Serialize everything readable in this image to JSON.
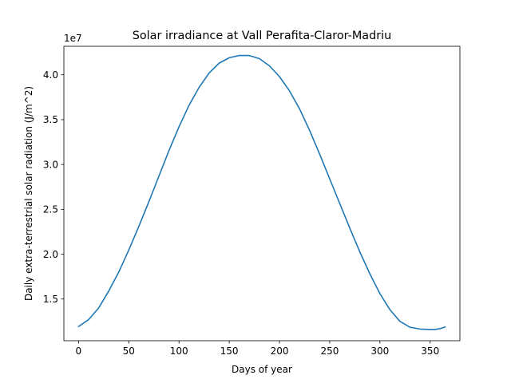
{
  "chart_data": {
    "type": "line",
    "title": "Solar irradiance at Vall Perafita-Claror-Madriu",
    "xlabel": "Days of year",
    "ylabel": "Daily extra-terrestrial solar radiation (J/m^2)",
    "y_offset_label": "1e7",
    "y_scale": 10000000,
    "xlim": [
      -14.6,
      379.6
    ],
    "ylim": [
      10350000,
      43180000
    ],
    "xticks": [
      0,
      50,
      100,
      150,
      200,
      250,
      300,
      350
    ],
    "xtick_labels": [
      "0",
      "50",
      "100",
      "150",
      "200",
      "250",
      "300",
      "350"
    ],
    "yticks": [
      15000000,
      20000000,
      25000000,
      30000000,
      35000000,
      40000000
    ],
    "ytick_labels": [
      "1.5",
      "2.0",
      "2.5",
      "3.0",
      "3.5",
      "4.0"
    ],
    "grid": false,
    "series": [
      {
        "name": "Solar irradiance",
        "color": "#1f77b4",
        "x": [
          0,
          10,
          20,
          30,
          40,
          50,
          60,
          70,
          80,
          90,
          100,
          110,
          120,
          130,
          140,
          150,
          160,
          170,
          180,
          190,
          200,
          210,
          220,
          230,
          240,
          250,
          260,
          270,
          280,
          290,
          300,
          310,
          320,
          330,
          340,
          350,
          355,
          360,
          365
        ],
        "y": [
          11930000,
          12700000,
          14000000,
          15880000,
          18000000,
          20450000,
          23100000,
          25850000,
          28700000,
          31550000,
          34200000,
          36600000,
          38600000,
          40200000,
          41300000,
          41900000,
          42150000,
          42150000,
          41800000,
          41000000,
          39800000,
          38200000,
          36200000,
          33800000,
          31150000,
          28400000,
          25650000,
          22900000,
          20250000,
          17800000,
          15600000,
          13800000,
          12500000,
          11850000,
          11650000,
          11600000,
          11600000,
          11700000,
          11880000
        ]
      }
    ]
  }
}
